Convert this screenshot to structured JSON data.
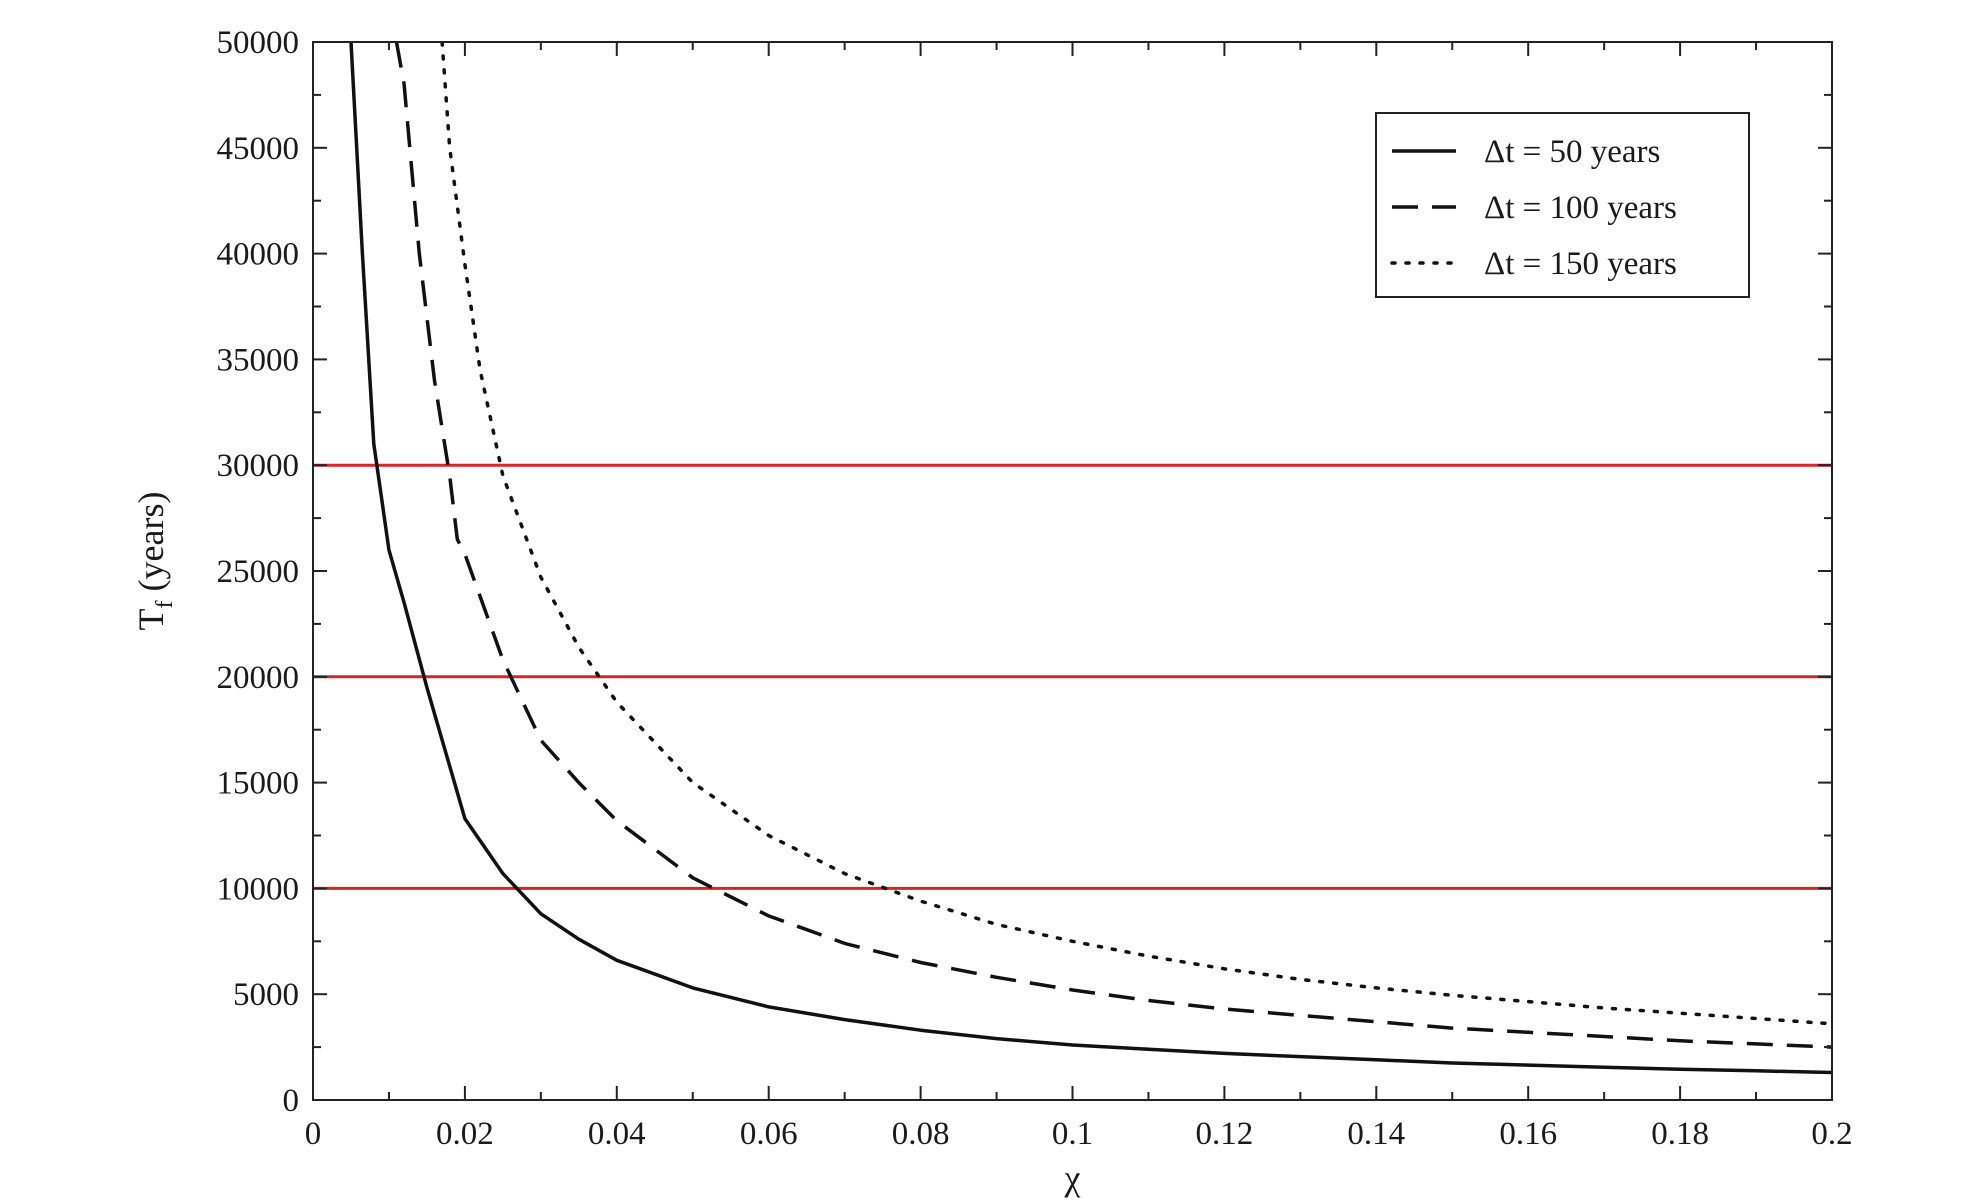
{
  "chart_data": {
    "type": "line",
    "xlabel": "χ",
    "ylabel_main": "T",
    "ylabel_sub": "f",
    "ylabel_rest": " (years)",
    "xlim": [
      0,
      0.2
    ],
    "ylim": [
      0,
      50000
    ],
    "xticks": [
      0,
      0.02,
      0.04,
      0.06,
      0.08,
      0.1,
      0.12,
      0.14,
      0.16,
      0.18,
      0.2
    ],
    "xtick_labels": [
      "0",
      "0.02",
      "0.04",
      "0.06",
      "0.08",
      "0.1",
      "0.12",
      "0.14",
      "0.16",
      "0.18",
      "0.2"
    ],
    "yticks": [
      0,
      5000,
      10000,
      15000,
      20000,
      25000,
      30000,
      35000,
      40000,
      45000,
      50000
    ],
    "ytick_labels": [
      "0",
      "5000",
      "10000",
      "15000",
      "20000",
      "25000",
      "30000",
      "35000",
      "40000",
      "45000",
      "50000"
    ],
    "grid": false,
    "legend_position": "top-right",
    "series": [
      {
        "name": "Δt = 50 years",
        "style": "solid",
        "color": "#111111",
        "x": [
          0.005,
          0.0065,
          0.008,
          0.009,
          0.01,
          0.012,
          0.015,
          0.02,
          0.025,
          0.03,
          0.035,
          0.04,
          0.05,
          0.06,
          0.07,
          0.08,
          0.09,
          0.1,
          0.11,
          0.12,
          0.13,
          0.14,
          0.15,
          0.16,
          0.17,
          0.18,
          0.19,
          0.2
        ],
        "y": [
          50000,
          40000,
          31000,
          28500,
          26000,
          23500,
          19500,
          13300,
          10700,
          8800,
          7600,
          6600,
          5300,
          4400,
          3800,
          3300,
          2900,
          2600,
          2400,
          2200,
          2050,
          1900,
          1750,
          1650,
          1550,
          1450,
          1380,
          1300
        ]
      },
      {
        "name": "Δt = 100 years",
        "style": "dashed",
        "color": "#111111",
        "x": [
          0.011,
          0.012,
          0.014,
          0.016,
          0.018,
          0.019,
          0.02,
          0.025,
          0.03,
          0.035,
          0.04,
          0.05,
          0.06,
          0.07,
          0.08,
          0.09,
          0.1,
          0.11,
          0.12,
          0.13,
          0.14,
          0.15,
          0.16,
          0.17,
          0.18,
          0.19,
          0.2
        ],
        "y": [
          50000,
          48000,
          40000,
          34000,
          29500,
          26500,
          25800,
          20800,
          17000,
          15000,
          13200,
          10500,
          8700,
          7400,
          6500,
          5800,
          5200,
          4700,
          4300,
          4000,
          3700,
          3400,
          3200,
          3000,
          2800,
          2650,
          2500
        ]
      },
      {
        "name": "Δt = 150 years",
        "style": "dotted",
        "color": "#111111",
        "x": [
          0.017,
          0.018,
          0.02,
          0.022,
          0.025,
          0.03,
          0.035,
          0.04,
          0.05,
          0.06,
          0.07,
          0.08,
          0.09,
          0.1,
          0.11,
          0.12,
          0.13,
          0.14,
          0.15,
          0.16,
          0.17,
          0.18,
          0.19,
          0.2
        ],
        "y": [
          50000,
          45000,
          39500,
          34500,
          29500,
          24700,
          21400,
          18800,
          15000,
          12500,
          10700,
          9400,
          8300,
          7500,
          6800,
          6200,
          5700,
          5300,
          4950,
          4650,
          4350,
          4100,
          3850,
          3600
        ]
      }
    ],
    "reference_lines": [
      {
        "y": 10000,
        "color": "#d62728"
      },
      {
        "y": 20000,
        "color": "#d62728"
      },
      {
        "y": 30000,
        "color": "#d62728"
      }
    ]
  }
}
